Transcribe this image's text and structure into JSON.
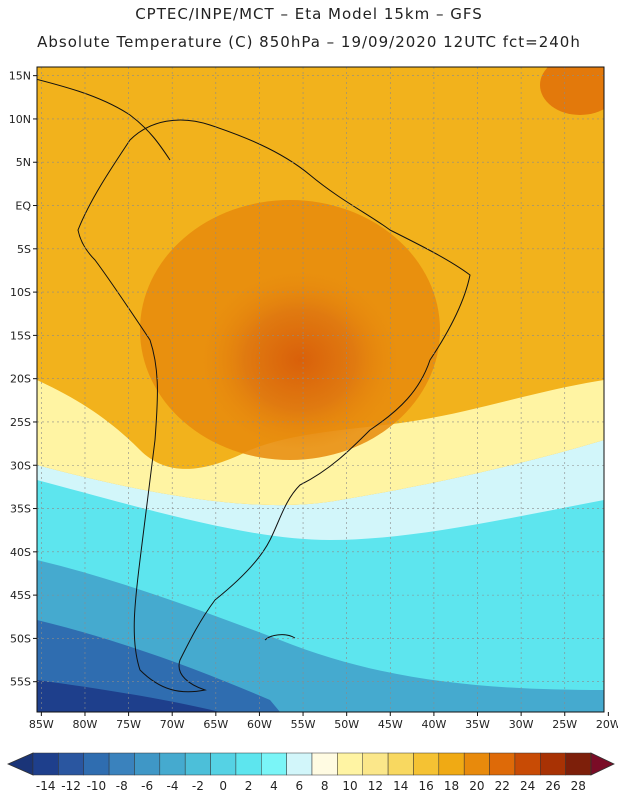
{
  "header": {
    "line1": "CPTEC/INPE/MCT –  Eta Model 15km – GFS",
    "line2": "Absolute Temperature (C) 850hPa – 19/09/2020 12UTC fct=240h"
  },
  "map": {
    "lat_labels": [
      "15N",
      "10N",
      "5N",
      "EQ",
      "5S",
      "10S",
      "15S",
      "20S",
      "25S",
      "30S",
      "35S",
      "40S",
      "45S",
      "50S",
      "55S"
    ],
    "lat_values": [
      15,
      10,
      5,
      0,
      -5,
      -10,
      -15,
      -20,
      -25,
      -30,
      -35,
      -40,
      -45,
      -50,
      -55
    ],
    "lon_labels": [
      "85W",
      "80W",
      "75W",
      "70W",
      "65W",
      "60W",
      "55W",
      "50W",
      "45W",
      "40W",
      "35W",
      "30W",
      "25W",
      "20W"
    ],
    "lon_values": [
      -85,
      -80,
      -75,
      -70,
      -65,
      -60,
      -55,
      -50,
      -45,
      -40,
      -35,
      -30,
      -25,
      -20
    ],
    "extent": {
      "lon_min": -85.5,
      "lon_max": -20.5,
      "lat_min": -58.5,
      "lat_max": 16
    }
  },
  "colorbar": {
    "labels": [
      "-14",
      "-12",
      "-10",
      "-8",
      "-6",
      "-4",
      "-2",
      "0",
      "2",
      "4",
      "6",
      "8",
      "10",
      "12",
      "14",
      "16",
      "18",
      "20",
      "22",
      "24",
      "26",
      "28"
    ],
    "colors": [
      "#1e3f8c",
      "#2a56a0",
      "#2f6db0",
      "#3a82bd",
      "#3f97c6",
      "#45aacf",
      "#4cbfd9",
      "#55d2e4",
      "#5de5ee",
      "#7af5f7",
      "#d2f6fa",
      "#fffbe2",
      "#fff4a3",
      "#fbe78a",
      "#f8d860",
      "#f5c233",
      "#f0aa14",
      "#e88a0c",
      "#de6a08",
      "#c84b05",
      "#a83204",
      "#7d1f0a"
    ],
    "under_color": "#1a3478",
    "over_color": "#7a0c26"
  }
}
